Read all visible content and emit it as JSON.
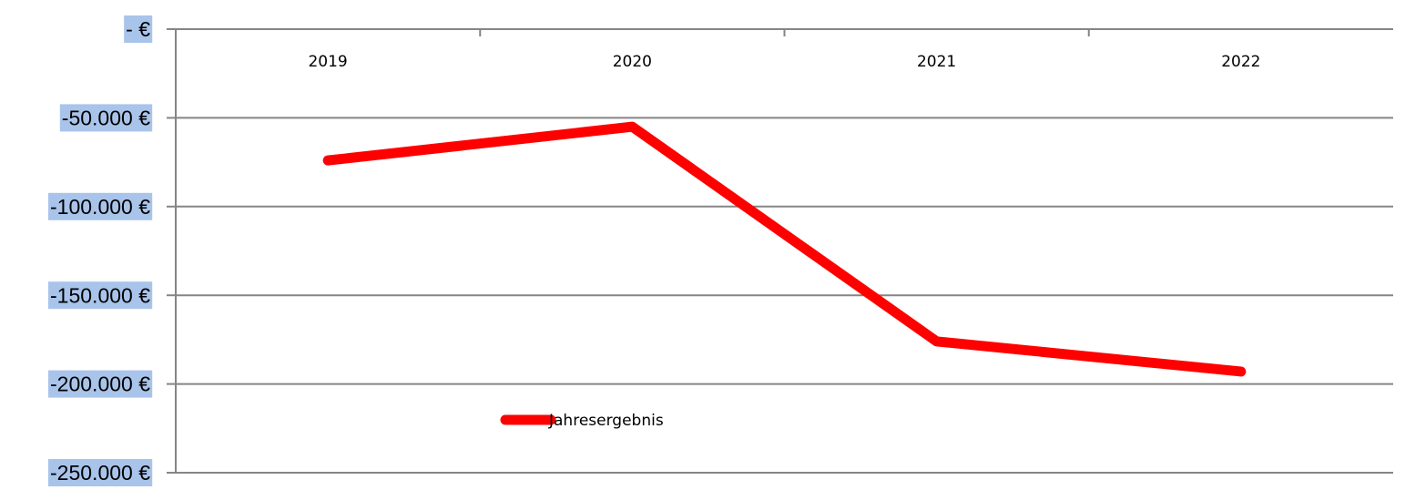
{
  "chart_data": {
    "type": "line",
    "categories": [
      "2019",
      "2020",
      "2021",
      "2022"
    ],
    "series": [
      {
        "name": "Jahresergebnis",
        "color": "#ff0000",
        "values": [
          -74000,
          -55000,
          -176000,
          -193000
        ]
      }
    ],
    "ylim": [
      -250000,
      0
    ],
    "yticks": [
      {
        "value": -250000,
        "label": "-250.000 €"
      },
      {
        "value": -200000,
        "label": "-200.000 €"
      },
      {
        "value": -150000,
        "label": "-150.000 €"
      },
      {
        "value": -100000,
        "label": "-100.000 €"
      },
      {
        "value": -50000,
        "label": "-50.000 €"
      },
      {
        "value": 0,
        "label": "- €"
      }
    ],
    "grid": true
  }
}
